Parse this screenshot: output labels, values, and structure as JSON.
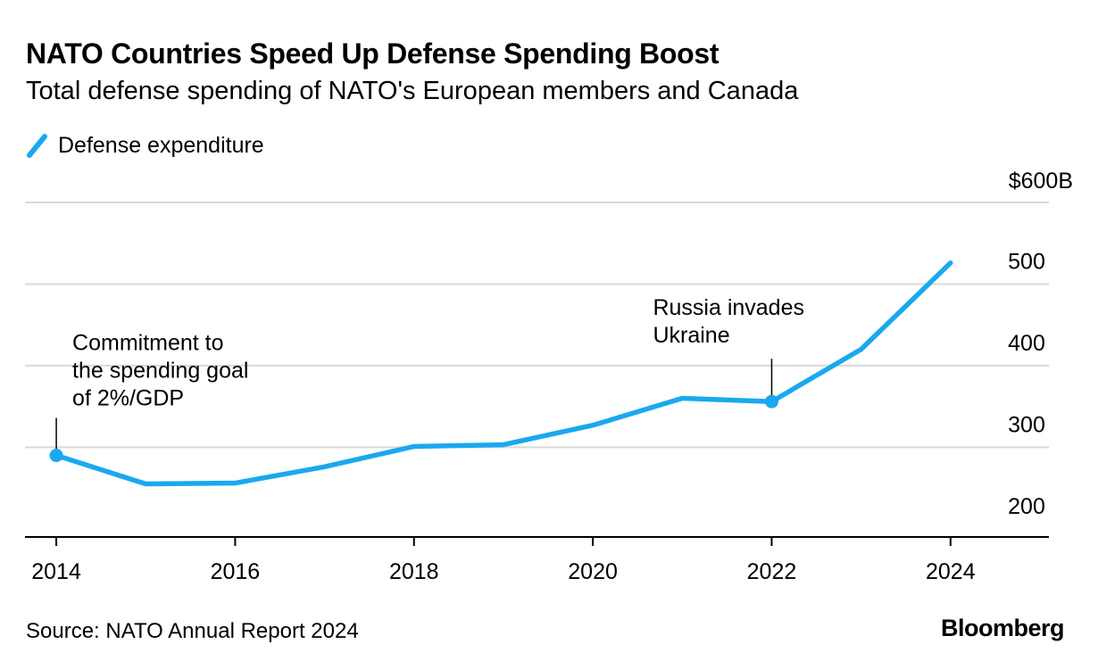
{
  "header": {
    "title": "NATO Countries Speed Up Defense Spending Boost",
    "subtitle": "Total defense spending of NATO's European members and Canada"
  },
  "legend": {
    "label": "Defense expenditure",
    "color": "#1aa8f0"
  },
  "footer": {
    "source": "Source: NATO Annual Report 2024",
    "brand": "Bloomberg"
  },
  "chart_data": {
    "type": "line",
    "title": "NATO Countries Speed Up Defense Spending Boost",
    "subtitle": "Total defense spending of NATO's European members and Canada",
    "xlabel": "",
    "ylabel": "",
    "x": [
      2014,
      2015,
      2016,
      2017,
      2018,
      2019,
      2020,
      2021,
      2022,
      2023,
      2024
    ],
    "series": [
      {
        "name": "Defense expenditure",
        "color": "#1aa8f0",
        "values": [
          290,
          255,
          256,
          276,
          301,
          303,
          327,
          360,
          356,
          420,
          526
        ]
      }
    ],
    "xlim": [
      2013.65,
      2025.1
    ],
    "ylim": [
      190,
      600
    ],
    "xticks": [
      {
        "value": 2014,
        "label": "2014"
      },
      {
        "value": 2016,
        "label": "2016"
      },
      {
        "value": 2018,
        "label": "2018"
      },
      {
        "value": 2020,
        "label": "2020"
      },
      {
        "value": 2022,
        "label": "2022"
      },
      {
        "value": 2024,
        "label": "2024"
      }
    ],
    "yticks": [
      {
        "value": 200,
        "label": "200"
      },
      {
        "value": 300,
        "label": "300"
      },
      {
        "value": 400,
        "label": "400"
      },
      {
        "value": 500,
        "label": "500"
      },
      {
        "value": 600,
        "label": "$600B"
      }
    ],
    "grid": true,
    "legend_position": "top-left",
    "annotations": [
      {
        "x": 2014,
        "y": 290,
        "lines": [
          "Commitment to",
          "the spending goal",
          "of 2%/GDP"
        ]
      },
      {
        "x": 2022,
        "y": 356,
        "lines": [
          "Russia invades",
          "Ukraine"
        ]
      }
    ]
  }
}
